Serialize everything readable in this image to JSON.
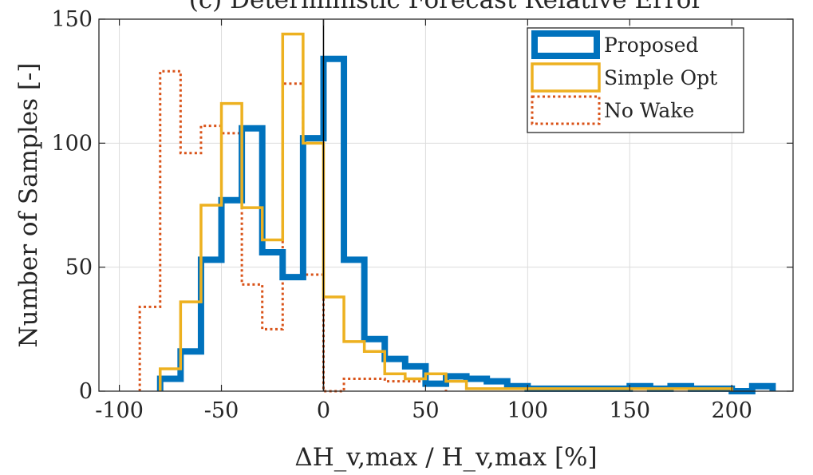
{
  "chart_data": {
    "type": "histogram",
    "title": "(c)   Deterministic   Forecast Relative Error",
    "xlabel": "ΔH_v,max / H_v,max [%]",
    "ylabel": "Number of Samples [-]",
    "xlim": [
      -110,
      230
    ],
    "ylim": [
      0,
      150
    ],
    "xticks": [
      -100,
      -50,
      0,
      50,
      100,
      150,
      200
    ],
    "yticks": [
      0,
      50,
      100,
      150
    ],
    "grid": true,
    "legend_position": "top-right",
    "vertical_reference_line": 0,
    "series": [
      {
        "name": "Proposed",
        "color": "#0072BD",
        "style": "solid-thick",
        "edges": [
          -80,
          -70,
          -60,
          -50,
          -40,
          -30,
          -20,
          -10,
          0,
          10,
          20,
          30,
          40,
          50,
          60,
          70,
          80,
          90,
          100,
          110,
          120,
          130,
          140,
          150,
          160,
          170,
          180,
          190,
          200,
          210,
          220
        ],
        "values": [
          5,
          16,
          53,
          77,
          106,
          56,
          46,
          102,
          134,
          53,
          21,
          13,
          10,
          3,
          6,
          5,
          4,
          2,
          1,
          1,
          1,
          1,
          1,
          2,
          1,
          2,
          1,
          1,
          0,
          2
        ]
      },
      {
        "name": "Simple Opt",
        "color": "#EDB120",
        "style": "solid",
        "edges": [
          -80,
          -70,
          -60,
          -50,
          -40,
          -30,
          -20,
          -10,
          0,
          10,
          20,
          30,
          40,
          50,
          60,
          70,
          80,
          90,
          100,
          110,
          120,
          130,
          140,
          150,
          160,
          170,
          180,
          190,
          200
        ],
        "values": [
          9,
          36,
          75,
          116,
          74,
          61,
          144,
          100,
          38,
          20,
          16,
          7,
          5,
          7,
          4,
          1,
          1,
          1,
          1,
          1,
          1,
          1,
          1,
          1,
          1,
          1,
          1,
          1
        ]
      },
      {
        "name": "No Wake",
        "color": "#D95319",
        "style": "dotted",
        "edges": [
          -90,
          -80,
          -70,
          -60,
          -50,
          -40,
          -30,
          -20,
          -10,
          0,
          10,
          20,
          30,
          40,
          50,
          60
        ],
        "values": [
          34,
          129,
          96,
          107,
          104,
          43,
          25,
          124,
          47,
          0,
          5,
          5,
          4,
          4,
          3
        ]
      }
    ]
  }
}
